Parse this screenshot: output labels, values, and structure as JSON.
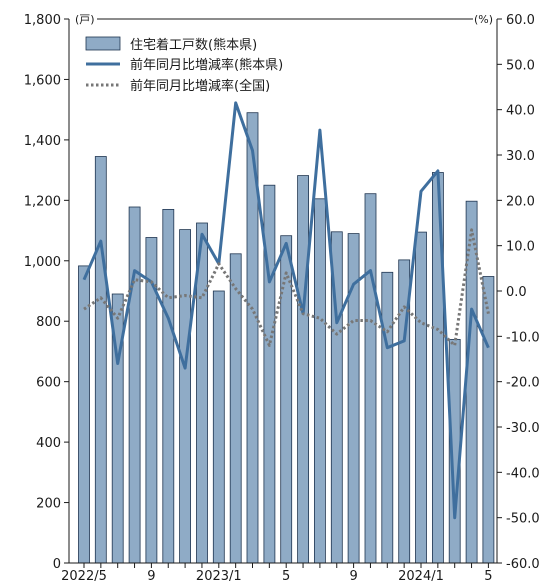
{
  "chart_data": {
    "type": "bar",
    "x_tick_labels": [
      "2022/5",
      "9",
      "2023/1",
      "5",
      "9",
      "2024/1",
      "5"
    ],
    "left_axis": {
      "unit": "(戸)",
      "ylim": [
        0,
        1800
      ],
      "tick_labels": [
        "0",
        "200",
        "400",
        "600",
        "800",
        "1,000",
        "1,200",
        "1,400",
        "1,600",
        "1,800"
      ]
    },
    "right_axis": {
      "unit": "(%)",
      "ylim": [
        -60,
        60
      ],
      "tick_labels": [
        "-60.0",
        "-50.0",
        "-40.0",
        "-30.0",
        "-20.0",
        "-10.0",
        "0.0",
        "10.0",
        "20.0",
        "30.0",
        "40.0",
        "50.0",
        "60.0"
      ]
    },
    "legend_placement": "top-left",
    "series": [
      {
        "name": "住宅着工戸数(熊本県)",
        "kind": "bar",
        "axis": "left",
        "color": "#8fabc6",
        "values": [
          983,
          1345,
          890,
          1178,
          1077,
          1170,
          1103,
          1125,
          900,
          1023,
          1490,
          1250,
          1083,
          1282,
          1205,
          1096,
          1090,
          1222,
          962,
          1003,
          1095,
          1292,
          740,
          1197,
          948
        ]
      },
      {
        "name": "前年同月比増減率(熊本県)",
        "kind": "line",
        "axis": "right",
        "color": "#3f6f9e",
        "values": [
          2.5,
          11,
          -16,
          4.5,
          2,
          -6,
          -17,
          12.5,
          6,
          41.5,
          31,
          2,
          10.5,
          -5,
          35.5,
          -7,
          1.5,
          4.5,
          -12.5,
          -11,
          22,
          26.5,
          -50,
          -4,
          -12.5
        ]
      },
      {
        "name": "前年同月比増減率(全国)",
        "kind": "line",
        "axis": "right",
        "color": "#777777",
        "values": [
          -4,
          -1.5,
          -6,
          2.5,
          2,
          -1.5,
          -1,
          -1.5,
          6,
          0.5,
          -4,
          -12,
          4,
          -5,
          -6,
          -9.5,
          -6.5,
          -6.5,
          -9,
          -3.5,
          -7,
          -8.5,
          -12,
          13.5,
          -5
        ]
      }
    ]
  }
}
